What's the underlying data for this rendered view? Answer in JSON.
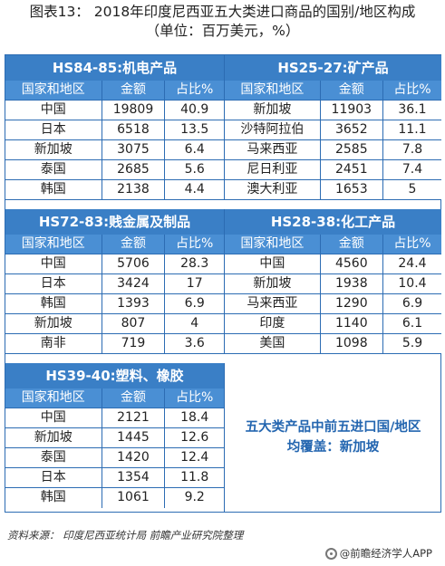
{
  "title": "图表13：  2018年印度尼西亚五大类进口商品的国别/地区构成",
  "subtitle": "（单位：百万美元，%）",
  "col_headers": [
    "国家和地区",
    "金额",
    "占比%"
  ],
  "blocks": [
    {
      "heading": "HS84-85:机电产品",
      "rows": [
        [
          "中国",
          "19809",
          "40.9"
        ],
        [
          "日本",
          "6518",
          "13.5"
        ],
        [
          "新加坡",
          "3075",
          "6.4"
        ],
        [
          "泰国",
          "2685",
          "5.6"
        ],
        [
          "韩国",
          "2138",
          "4.4"
        ]
      ]
    },
    {
      "heading": "HS25-27:矿产品",
      "rows": [
        [
          "新加坡",
          "11903",
          "36.1"
        ],
        [
          "沙特阿拉伯",
          "3652",
          "11.1"
        ],
        [
          "马来西亚",
          "2585",
          "7.8"
        ],
        [
          "尼日利亚",
          "2451",
          "7.4"
        ],
        [
          "澳大利亚",
          "1653",
          "5"
        ]
      ]
    },
    {
      "heading": "HS72-83:贱金属及制品",
      "rows": [
        [
          "中国",
          "5706",
          "28.3"
        ],
        [
          "日本",
          "3424",
          "17"
        ],
        [
          "韩国",
          "1393",
          "6.9"
        ],
        [
          "新加坡",
          "807",
          "4"
        ],
        [
          "南非",
          "719",
          "3.6"
        ]
      ]
    },
    {
      "heading": "HS28-38:化工产品",
      "rows": [
        [
          "中国",
          "4560",
          "24.4"
        ],
        [
          "新加坡",
          "1938",
          "10.4"
        ],
        [
          "马来西亚",
          "1290",
          "6.9"
        ],
        [
          "印度",
          "1140",
          "6.1"
        ],
        [
          "美国",
          "1098",
          "5.9"
        ]
      ]
    },
    {
      "heading": "HS39-40:塑料、橡胶",
      "rows": [
        [
          "中国",
          "2121",
          "18.4"
        ],
        [
          "新加坡",
          "1445",
          "12.6"
        ],
        [
          "泰国",
          "1420",
          "12.4"
        ],
        [
          "日本",
          "1354",
          "11.8"
        ],
        [
          "韩国",
          "1061",
          "9.2"
        ]
      ]
    }
  ],
  "summary": {
    "line1": "五大类产品中前五进口国/地区",
    "line2": "均覆盖：新加坡"
  },
  "source": "资料来源：  印度尼西亚统计局  前瞻产业研究院整理",
  "footer": "@前瞻经济学人APP",
  "icons": {
    "footer_logo": "qianzhan-logo-icon"
  },
  "colors": {
    "header_bg": "#3a7fc6",
    "colhead_bg": "#4a8fd4",
    "border": "#2c6cb3",
    "summary_text": "#2466b0"
  }
}
